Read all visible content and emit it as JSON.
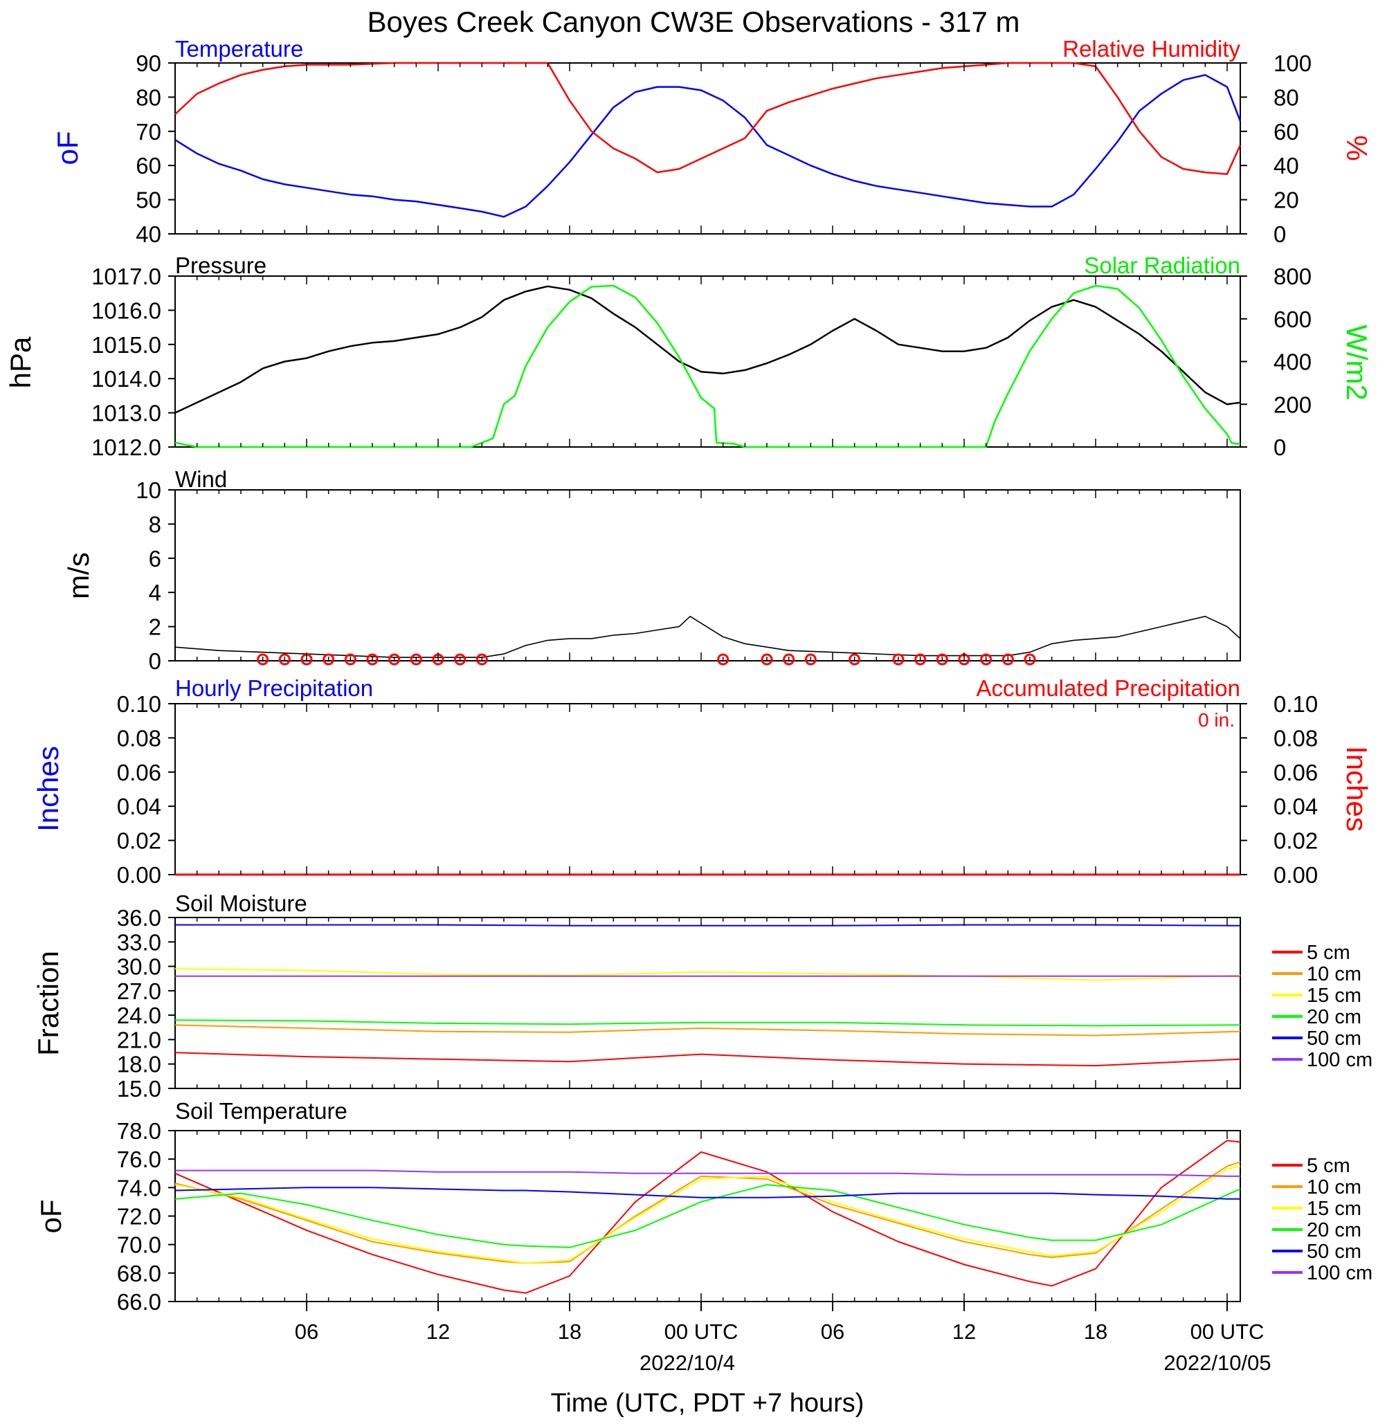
{
  "title": "Boyes Creek Canyon CW3E Observations - 317 m",
  "xaxis": {
    "ticks": [
      "06",
      "12",
      "18",
      "00 UTC",
      "06",
      "12",
      "18",
      "00 UTC"
    ],
    "dates": [
      "2022/10/4",
      "2022/10/05"
    ],
    "label": "Time (UTC, PDT +7 hours)"
  },
  "chart_data": [
    {
      "type": "line",
      "panel": "temperature_humidity",
      "left_label": "Temperature",
      "right_label": "Relative Humidity",
      "left_units": "oF",
      "right_units": "%",
      "left_ylim": [
        40,
        90
      ],
      "right_ylim": [
        0,
        100
      ],
      "left_ticks": [
        "90",
        "80",
        "70",
        "60",
        "50",
        "40"
      ],
      "right_ticks": [
        "100",
        "80",
        "60",
        "40",
        "20",
        "0"
      ],
      "colors": {
        "left": "#0000ff",
        "right": "#ff0000"
      },
      "x_hours": [
        0,
        1,
        2,
        3,
        4,
        5,
        6,
        7,
        8,
        9,
        10,
        11,
        12,
        13,
        14,
        15,
        16,
        17,
        18,
        19,
        20,
        21,
        22,
        23,
        24,
        25,
        26,
        27,
        28,
        29,
        30,
        31,
        32,
        33,
        34,
        35,
        36,
        37,
        38,
        39,
        40,
        41,
        42,
        43,
        44,
        45,
        46,
        47,
        48,
        48.6
      ],
      "series": [
        {
          "axis": "left",
          "values": [
            67.5,
            63.5,
            60.5,
            58.5,
            56,
            54.5,
            53.5,
            52.5,
            51.5,
            51,
            50,
            49.5,
            48.5,
            47.5,
            46.5,
            45,
            48,
            54,
            61,
            69,
            77,
            81.5,
            83,
            83,
            82,
            79,
            74,
            66,
            63,
            60,
            57.5,
            55.5,
            54,
            53,
            52,
            51,
            50,
            49,
            48.5,
            48,
            48,
            51.5,
            59,
            67,
            76,
            81,
            85,
            86.5,
            83,
            73
          ]
        },
        {
          "axis": "right",
          "values": [
            70,
            82,
            88,
            93,
            96,
            98,
            99,
            99,
            99,
            99.5,
            100,
            100,
            100,
            100,
            100,
            100,
            100,
            100,
            78,
            60,
            50,
            44,
            36,
            38,
            44,
            50,
            56,
            72,
            77,
            81,
            85,
            88,
            91,
            93,
            95,
            97,
            98,
            99,
            100,
            100,
            100,
            100,
            98,
            80,
            60,
            45,
            38,
            36,
            35,
            52
          ]
        }
      ]
    },
    {
      "type": "line",
      "panel": "pressure_solar",
      "left_label": "Pressure",
      "right_label": "Solar Radiation",
      "left_units": "hPa",
      "right_units": "W/m2",
      "left_ylim": [
        1012,
        1017
      ],
      "right_ylim": [
        0,
        800
      ],
      "left_ticks": [
        "1017.0",
        "1016.0",
        "1015.0",
        "1014.0",
        "1013.0",
        "1012.0"
      ],
      "right_ticks": [
        "800",
        "600",
        "400",
        "200",
        "0"
      ],
      "colors": {
        "left": "#000000",
        "right": "#00ff00"
      },
      "series": [
        {
          "axis": "left",
          "x_hours": [
            0,
            1,
            2,
            3,
            4,
            5,
            6,
            7,
            8,
            9,
            10,
            11,
            12,
            13,
            14,
            15,
            16,
            17,
            18,
            19,
            20,
            21,
            22,
            23,
            24,
            25,
            26,
            27,
            28,
            29,
            30,
            31,
            32,
            33,
            34,
            35,
            36,
            37,
            38,
            39,
            40,
            41,
            42,
            43,
            44,
            45,
            46,
            47,
            48,
            48.6
          ],
          "values": [
            1013.0,
            1013.3,
            1013.6,
            1013.9,
            1014.3,
            1014.5,
            1014.6,
            1014.8,
            1014.95,
            1015.05,
            1015.1,
            1015.2,
            1015.3,
            1015.5,
            1015.8,
            1016.3,
            1016.55,
            1016.7,
            1016.6,
            1016.35,
            1015.9,
            1015.5,
            1015.0,
            1014.5,
            1014.2,
            1014.15,
            1014.25,
            1014.45,
            1014.7,
            1015.0,
            1015.4,
            1015.75,
            1015.4,
            1015.0,
            1014.9,
            1014.8,
            1014.8,
            1014.9,
            1015.2,
            1015.7,
            1016.1,
            1016.3,
            1016.1,
            1015.7,
            1015.3,
            1014.8,
            1014.2,
            1013.6,
            1013.25,
            1013.3
          ]
        },
        {
          "axis": "right",
          "x_hours": [
            0,
            1,
            13.5,
            14.5,
            15,
            15.5,
            16,
            17,
            18,
            19,
            20,
            21,
            22,
            23,
            24,
            24.6,
            24.7,
            25.5,
            26,
            37,
            37.4,
            38,
            39,
            40,
            41,
            42,
            43,
            44,
            45,
            46,
            47,
            48,
            48.2,
            48.4,
            48.6
          ],
          "values": [
            20,
            0,
            0,
            40,
            200,
            240,
            380,
            560,
            680,
            750,
            755,
            700,
            580,
            420,
            230,
            180,
            20,
            15,
            0,
            0,
            120,
            250,
            450,
            600,
            720,
            755,
            740,
            650,
            500,
            330,
            180,
            60,
            20,
            15,
            15
          ]
        }
      ]
    },
    {
      "type": "line",
      "panel": "wind",
      "left_label": "Wind",
      "left_units": "m/s",
      "left_ylim": [
        0,
        10
      ],
      "left_ticks": [
        "10",
        "8",
        "6",
        "4",
        "2",
        "0"
      ],
      "colors": {
        "speed": "#000000",
        "barbs": "#ff0000"
      },
      "series": [
        {
          "name": "",
          "x_hours": [
            0,
            2,
            4,
            6,
            8,
            10,
            12,
            14,
            15,
            16,
            17,
            18,
            19,
            20,
            21,
            22,
            23,
            23.5,
            24,
            25,
            26,
            27,
            28,
            30,
            32,
            34,
            36,
            38,
            39,
            40,
            41,
            42,
            43,
            44,
            45,
            46,
            47,
            48,
            48.6
          ],
          "values": [
            0.8,
            0.6,
            0.5,
            0.4,
            0.3,
            0.2,
            0.2,
            0.2,
            0.4,
            0.9,
            1.2,
            1.3,
            1.3,
            1.5,
            1.6,
            1.8,
            2.0,
            2.6,
            2.2,
            1.4,
            1.0,
            0.8,
            0.6,
            0.5,
            0.4,
            0.3,
            0.3,
            0.3,
            0.5,
            1.0,
            1.2,
            1.3,
            1.4,
            1.7,
            2.0,
            2.3,
            2.6,
            2.0,
            1.3
          ]
        }
      ],
      "calm_hours": [
        4,
        5,
        6,
        7,
        8,
        9,
        10,
        11,
        12,
        13,
        14,
        25,
        27,
        28,
        29,
        31,
        33,
        34,
        35,
        36,
        37,
        38,
        39
      ]
    },
    {
      "type": "line",
      "panel": "precipitation",
      "left_label": "Hourly Precipitation",
      "right_label": "Accumulated Precipitation",
      "annotation": "0 in.",
      "left_units": "Inches",
      "right_units": "Inches",
      "left_ylim": [
        0,
        0.1
      ],
      "left_ticks": [
        "0.10",
        "0.08",
        "0.06",
        "0.04",
        "0.02",
        "0.00"
      ],
      "right_ticks": [
        "0.10",
        "0.08",
        "0.06",
        "0.04",
        "0.02",
        "0.00"
      ],
      "colors": {
        "left": "#0000ff",
        "right": "#ff0000"
      },
      "series": [
        {
          "axis": "right",
          "x_hours": [
            0,
            48.6
          ],
          "values": [
            0,
            0
          ]
        }
      ]
    },
    {
      "type": "line",
      "panel": "soil_moisture",
      "left_label": "Soil Moisture",
      "left_units": "Fraction",
      "left_ylim": [
        15,
        36
      ],
      "left_ticks": [
        "36.0",
        "33.0",
        "30.0",
        "27.0",
        "24.0",
        "21.0",
        "18.0",
        "15.0"
      ],
      "x_hours": [
        0,
        6,
        12,
        18,
        24,
        30,
        36,
        42,
        48.6
      ],
      "series": [
        {
          "name": "5 cm",
          "color": "#ff0000",
          "values": [
            19.4,
            18.9,
            18.6,
            18.3,
            19.2,
            18.5,
            18.0,
            17.8,
            18.6
          ]
        },
        {
          "name": "10 cm",
          "color": "#ff9900",
          "values": [
            22.8,
            22.4,
            22.0,
            21.9,
            22.4,
            22.1,
            21.7,
            21.5,
            22.0
          ]
        },
        {
          "name": "15 cm",
          "color": "#ffff00",
          "values": [
            29.7,
            29.5,
            29.0,
            28.9,
            29.3,
            29.1,
            28.8,
            28.3,
            28.9
          ]
        },
        {
          "name": "20 cm",
          "color": "#00ff00",
          "values": [
            23.4,
            23.3,
            23.0,
            22.9,
            23.1,
            23.1,
            22.8,
            22.7,
            22.8
          ]
        },
        {
          "name": "50 cm",
          "color": "#0000ff",
          "values": [
            35.1,
            35.1,
            35.1,
            35.0,
            35.0,
            35.0,
            35.1,
            35.1,
            35.0
          ]
        },
        {
          "name": "100 cm",
          "color": "#9933ff",
          "values": [
            28.8,
            28.8,
            28.8,
            28.8,
            28.8,
            28.8,
            28.8,
            28.8,
            28.8
          ]
        }
      ]
    },
    {
      "type": "line",
      "panel": "soil_temperature",
      "left_label": "Soil Temperature",
      "left_units": "oF",
      "left_ylim": [
        66,
        78
      ],
      "left_ticks": [
        "78.0",
        "76.0",
        "74.0",
        "72.0",
        "70.0",
        "68.0",
        "66.0"
      ],
      "x_hours": [
        0,
        3,
        6,
        9,
        12,
        15,
        16,
        18,
        21,
        24,
        27,
        30,
        33,
        36,
        39,
        40,
        42,
        45,
        48,
        48.6
      ],
      "series": [
        {
          "name": "5 cm",
          "color": "#ff0000",
          "values": [
            75.0,
            73.0,
            71.0,
            69.3,
            67.9,
            66.8,
            66.6,
            67.8,
            73.0,
            76.5,
            75.1,
            72.3,
            70.2,
            68.6,
            67.4,
            67.1,
            68.3,
            74.0,
            77.3,
            77.2
          ]
        },
        {
          "name": "10 cm",
          "color": "#ff9900",
          "values": [
            74.3,
            73.2,
            71.7,
            70.2,
            69.4,
            68.8,
            68.7,
            68.8,
            72.0,
            74.8,
            74.6,
            72.8,
            71.5,
            70.2,
            69.3,
            69.1,
            69.4,
            72.5,
            75.5,
            75.8
          ]
        },
        {
          "name": "15 cm",
          "color": "#ffff00",
          "values": [
            74.2,
            73.3,
            71.8,
            70.4,
            69.5,
            68.9,
            68.7,
            68.9,
            71.9,
            74.6,
            74.8,
            73.0,
            71.6,
            70.4,
            69.5,
            69.2,
            69.5,
            72.3,
            75.3,
            75.5
          ]
        },
        {
          "name": "20 cm",
          "color": "#00ff00",
          "values": [
            73.2,
            73.6,
            72.8,
            71.7,
            70.7,
            70.0,
            69.9,
            69.8,
            71.0,
            73.0,
            74.2,
            73.8,
            72.6,
            71.4,
            70.5,
            70.3,
            70.3,
            71.4,
            73.5,
            73.9
          ]
        },
        {
          "name": "50 cm",
          "color": "#0000ff",
          "values": [
            73.8,
            73.9,
            74.0,
            74.0,
            73.9,
            73.8,
            73.8,
            73.7,
            73.5,
            73.3,
            73.3,
            73.4,
            73.6,
            73.6,
            73.6,
            73.6,
            73.5,
            73.4,
            73.2,
            73.2
          ]
        },
        {
          "name": "100 cm",
          "color": "#9933ff",
          "values": [
            75.2,
            75.2,
            75.2,
            75.2,
            75.1,
            75.1,
            75.1,
            75.1,
            75.0,
            75.0,
            75.0,
            75.0,
            75.0,
            74.9,
            74.9,
            74.9,
            74.9,
            74.9,
            74.8,
            74.8
          ]
        }
      ]
    }
  ]
}
